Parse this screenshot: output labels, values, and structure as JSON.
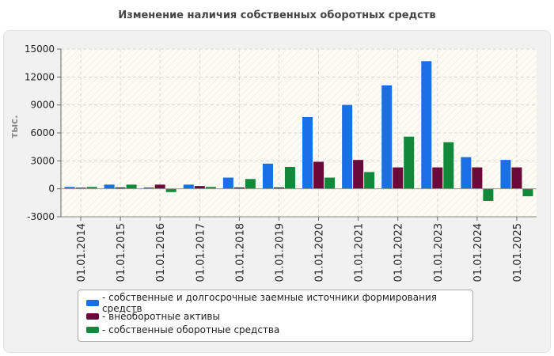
{
  "chart_data": {
    "type": "bar",
    "title": "Изменение наличия собственных оборотных средств",
    "ylabel": "тыс.",
    "xlabel": "",
    "ylim": [
      -3000,
      15000
    ],
    "yticks": [
      -3000,
      0,
      3000,
      6000,
      9000,
      12000,
      15000
    ],
    "grid": true,
    "legend_position": "bottom",
    "categories": [
      "01.01.2014",
      "01.01.2015",
      "01.01.2016",
      "01.01.2017",
      "01.01.2018",
      "01.01.2019",
      "01.01.2020",
      "01.01.2021",
      "01.01.2022",
      "01.01.2023",
      "01.01.2024",
      "01.01.2025"
    ],
    "series": [
      {
        "name": "собственные и долгосрочные заемные источники формирования средств",
        "color": "#1a6fe6",
        "values": [
          200,
          450,
          150,
          450,
          1200,
          2700,
          7700,
          9000,
          11100,
          13700,
          3400,
          3100
        ]
      },
      {
        "name": "внеоборотные активы",
        "color": "#6b0a3a",
        "values": [
          120,
          150,
          450,
          300,
          150,
          150,
          2900,
          3100,
          2300,
          2300,
          2300,
          2300
        ]
      },
      {
        "name": "собственные оборотные средства",
        "color": "#12883a",
        "values": [
          200,
          450,
          -350,
          200,
          1050,
          2350,
          1200,
          1800,
          5600,
          5000,
          -1300,
          -800
        ]
      }
    ]
  }
}
